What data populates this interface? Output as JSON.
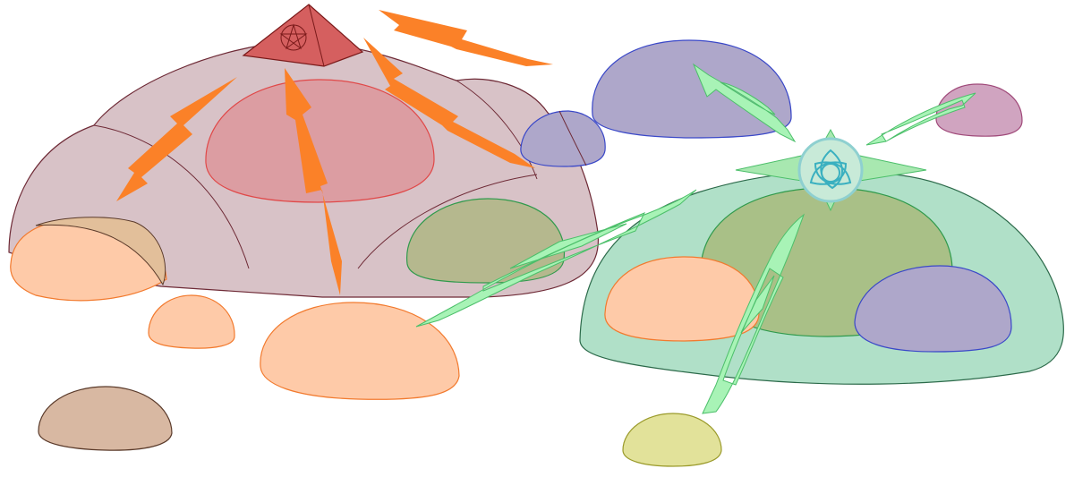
{
  "colors": {
    "background": "#ffffff",
    "pink_dome": "#d8c2c7",
    "pink_dome_stroke": "#6e2a36",
    "red_cap": "#dc9da2",
    "red_cap_stroke": "#e04848",
    "peach": "#fecaa8",
    "peach_stroke": "#f27a2e",
    "brown": "#d8b8a2",
    "brown_stroke": "#5a3a2a",
    "olive": "#b5b88e",
    "olive_green": "#a9c087",
    "green_stroke": "#2f9a4c",
    "purple": "#aea7ca",
    "purple_stroke": "#3a48c8",
    "mauve": "#d0a4c0",
    "mauve_stroke": "#a04a7a",
    "green_dome": "#b0e0c8",
    "green_dome_stroke": "#2c6a4a",
    "yellow": "#e2e29a",
    "yellow_stroke": "#9a9a2a",
    "pyramid": "#d55f5f",
    "pyramid_stroke": "#7a1a1a",
    "orange_arrow": "#fb8128",
    "green_arrow": "#a8f3b6",
    "green_arrow_stroke": "#4cbf6a",
    "emblem_fill": "#c8ead8",
    "emblem_ring": "#8ed0d0",
    "emblem_star": "#a8e8b0",
    "triquetra": "#3ab0c0"
  },
  "icons": {
    "pyramid": "pentagram-pyramid-icon",
    "emblem": "triquetra-star-icon"
  }
}
